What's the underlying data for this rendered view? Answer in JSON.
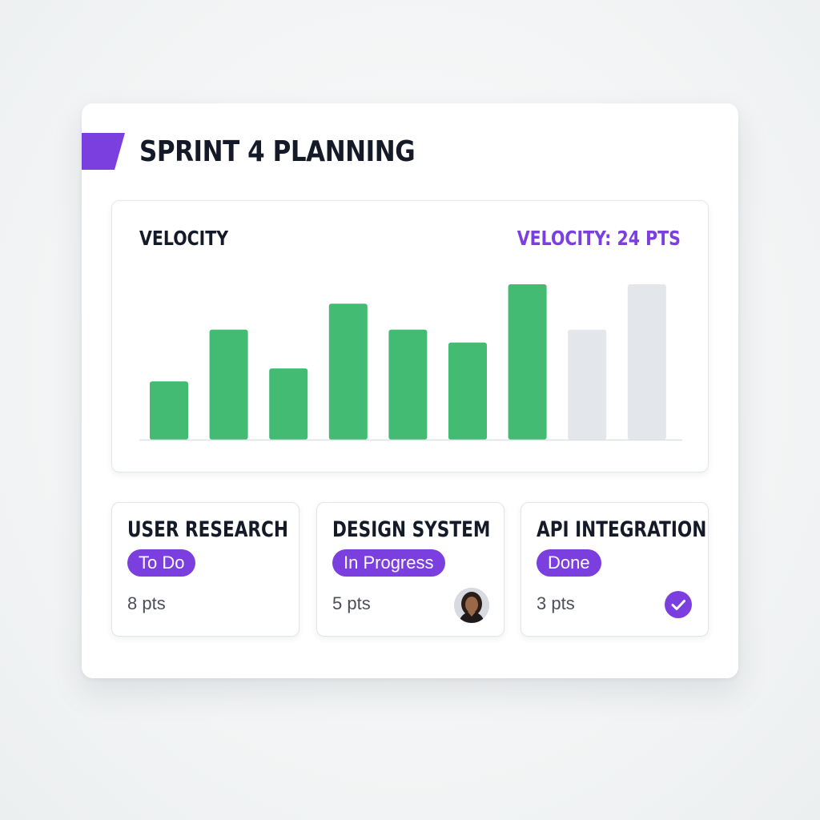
{
  "board": {
    "title": "SPRINT 4 PLANNING"
  },
  "colors": {
    "accent": "#7b3fe0",
    "completed_bar": "#43bb72",
    "projected_bar": "#e3e6ea",
    "title_text": "#151a28"
  },
  "velocity_panel": {
    "title": "VELOCITY",
    "readout": "VELOCITY: 24 PTS"
  },
  "chart_data": {
    "type": "bar",
    "title": "VELOCITY",
    "xlabel": "",
    "ylabel": "",
    "grid": false,
    "ylim": [
      0,
      12
    ],
    "series": [
      {
        "values": [
          4.5,
          8.5,
          5.5,
          10.5,
          8.5,
          7.5,
          12,
          null,
          null
        ]
      },
      {
        "values": [
          null,
          null,
          null,
          null,
          null,
          null,
          null,
          8.5,
          12
        ]
      }
    ]
  },
  "tasks": [
    {
      "title": "USER RESEARCH",
      "status": "To Do",
      "points": "8 pts",
      "indicator": "none"
    },
    {
      "title": "DESIGN SYSTEM",
      "status": "In Progress",
      "points": "5 pts",
      "indicator": "avatar-icon"
    },
    {
      "title": "API INTEGRATION",
      "status": "Done",
      "points": "3 pts",
      "indicator": "check-icon"
    }
  ]
}
